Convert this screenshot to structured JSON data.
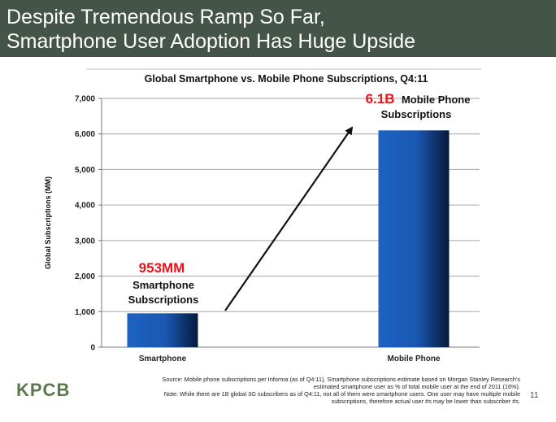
{
  "slide": {
    "title_line1": "Despite Tremendous Ramp So Far,",
    "title_line2": "Smartphone User Adoption Has Huge Upside",
    "source_line1": "Source: Mobile phone subscriptions per Informa (as of Q4:11), Smartphone subscriptions estimate based on Morgan Stanley Research's",
    "source_line2": "estimated smartphone user as % of total mobile user at the end of 2011 (16%).",
    "source_line3": "Note: While there are 1B global 3G subscribers as of Q4:11, not all of them were smartphone users. One user may have multiple mobile",
    "source_line4": "subscriptions, therefore actual user #s may be lower than subscriber #s.",
    "logo": "KPCB",
    "page_number": "11"
  },
  "chart_data": {
    "type": "bar",
    "title": "Global Smartphone vs. Mobile Phone Subscriptions, Q4:11",
    "xlabel": "",
    "ylabel": "Global Subscriptions (MM)",
    "categories": [
      "Smartphone",
      "Mobile Phone"
    ],
    "values": [
      953,
      6100
    ],
    "ylim": [
      0,
      7000
    ],
    "yticks": [
      0,
      1000,
      2000,
      3000,
      4000,
      5000,
      6000,
      7000
    ],
    "ytick_labels": [
      "0",
      "1,000",
      "2,000",
      "3,000",
      "4,000",
      "5,000",
      "6,000",
      "7,000"
    ],
    "grid": true,
    "bar_color": "#1d62c4",
    "highlight_color": "#e8141d",
    "annotations": [
      {
        "bar": 0,
        "value_text": "953MM",
        "line1": "Smartphone",
        "line2": "Subscriptions"
      },
      {
        "bar": 1,
        "value_text": "6.1B",
        "suffix": "Mobile Phone",
        "line2": "Subscriptions"
      }
    ]
  }
}
